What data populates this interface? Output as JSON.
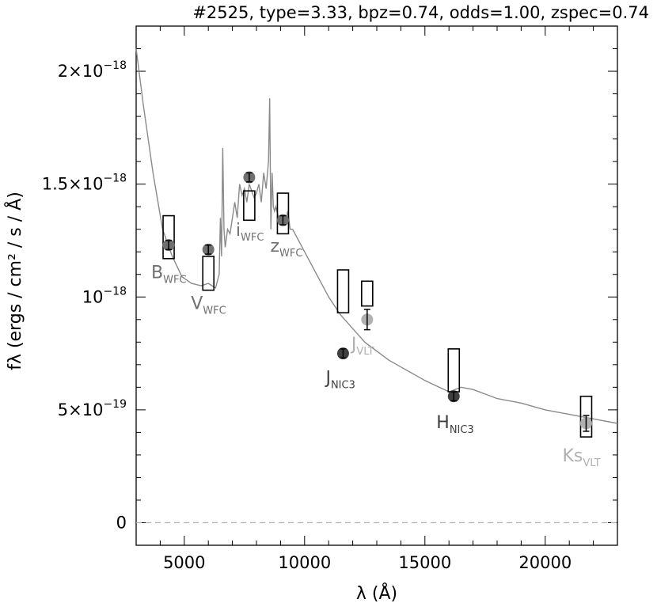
{
  "chart_data": {
    "type": "scatter",
    "title": "#2525, type=3.33, bpz=0.74, odds=1.00, zspec=0.74",
    "xlabel": "λ (Å)",
    "ylabel": "fλ (ergs / cm² / s / Å)",
    "xlim": [
      3000,
      23000
    ],
    "ylim": [
      -1e-19,
      2.2e-18
    ],
    "x_ticks": [
      5000,
      10000,
      15000,
      20000
    ],
    "x_tick_labels": [
      "5000",
      "10000",
      "15000",
      "20000"
    ],
    "y_ticks": [
      0,
      5e-19,
      1e-18,
      1.5e-18,
      2e-18
    ],
    "y_tick_labels": [
      {
        "base": "0",
        "exp": ""
      },
      {
        "base": "5×10",
        "exp": "−19"
      },
      {
        "base": "10",
        "exp": "−18"
      },
      {
        "base": "1.5×10",
        "exp": "−18"
      },
      {
        "base": "2×10",
        "exp": "−18"
      }
    ],
    "zero_line": {
      "y": 0,
      "style": "dashed"
    },
    "template_sed": {
      "x": [
        3000,
        3300,
        3700,
        4100,
        4500,
        4900,
        5300,
        5700,
        6000,
        6300,
        6450,
        6500,
        6550,
        6600,
        6650,
        6700,
        6800,
        6900,
        7000,
        7100,
        7200,
        7300,
        7400,
        7500,
        7600,
        7700,
        7800,
        7900,
        8000,
        8100,
        8200,
        8300,
        8400,
        8500,
        8550,
        8600,
        8650,
        8700,
        8750,
        8800,
        8900,
        9000,
        9100,
        9200,
        9300,
        9400,
        9500,
        9700,
        10000,
        10500,
        11000,
        11500,
        12000,
        12500,
        13000,
        13500,
        14000,
        15000,
        16000,
        16500,
        17000,
        17500,
        18000,
        19000,
        20000,
        21000,
        22000,
        23000
      ],
      "y": [
        2.1e-18,
        1.85e-18,
        1.55e-18,
        1.3e-18,
        1.18e-18,
        1.09e-18,
        1.06e-18,
        1.05e-18,
        1.06e-18,
        1.04e-18,
        1.1e-18,
        1.35e-18,
        1.18e-18,
        1.66e-18,
        1.3e-18,
        1.22e-18,
        1.3e-18,
        1.28e-18,
        1.35e-18,
        1.42e-18,
        1.35e-18,
        1.5e-18,
        1.45e-18,
        1.48e-18,
        1.42e-18,
        1.5e-18,
        1.47e-18,
        1.44e-18,
        1.46e-18,
        1.5e-18,
        1.42e-18,
        1.55e-18,
        1.48e-18,
        1.6e-18,
        1.88e-18,
        1.3e-18,
        1.55e-18,
        1.4e-18,
        1.38e-18,
        1.4e-18,
        1.36e-18,
        1.34e-18,
        1.36e-18,
        1.32e-18,
        1.38e-18,
        1.3e-18,
        1.3e-18,
        1.26e-18,
        1.2e-18,
        1.1e-18,
        1e-18,
        9.2e-19,
        8.6e-19,
        8e-19,
        7.6e-19,
        7.2e-19,
        6.9e-19,
        6.3e-19,
        5.8e-19,
        6e-19,
        5.9e-19,
        5.7e-19,
        5.5e-19,
        5.3e-19,
        5e-19,
        4.8e-19,
        4.6e-19,
        4.4e-19
      ]
    },
    "model_boxes": [
      {
        "x": 4350,
        "y_low": 1.17e-18,
        "y_high": 1.36e-18
      },
      {
        "x": 6000,
        "y_low": 1.03e-18,
        "y_high": 1.18e-18
      },
      {
        "x": 7700,
        "y_low": 1.34e-18,
        "y_high": 1.47e-18
      },
      {
        "x": 9100,
        "y_low": 1.28e-18,
        "y_high": 1.46e-18
      },
      {
        "x": 11600,
        "y_low": 9.3e-19,
        "y_high": 1.12e-18
      },
      {
        "x": 12600,
        "y_low": 9.6e-19,
        "y_high": 1.07e-18
      },
      {
        "x": 16200,
        "y_low": 5.8e-19,
        "y_high": 7.7e-19
      },
      {
        "x": 21700,
        "y_low": 3.8e-19,
        "y_high": 5.6e-19
      }
    ],
    "observations": [
      {
        "band": "B",
        "sub": "WFC",
        "x": 4350,
        "y": 1.23e-18,
        "err": 2e-20,
        "color": "#707070"
      },
      {
        "band": "V",
        "sub": "WFC",
        "x": 6000,
        "y": 1.21e-18,
        "err": 2e-20,
        "color": "#707070"
      },
      {
        "band": "i",
        "sub": "WFC",
        "x": 7700,
        "y": 1.53e-18,
        "err": 2e-20,
        "color": "#707070"
      },
      {
        "band": "z",
        "sub": "WFC",
        "x": 9100,
        "y": 1.34e-18,
        "err": 2e-20,
        "color": "#707070"
      },
      {
        "band": "J",
        "sub": "NIC3",
        "x": 11600,
        "y": 7.5e-19,
        "err": 2e-20,
        "color": "#404040"
      },
      {
        "band": "J",
        "sub": "VLT",
        "x": 12600,
        "y": 9e-19,
        "err": 4.5e-20,
        "color": "#b0b0b0"
      },
      {
        "band": "H",
        "sub": "NIC3",
        "x": 16200,
        "y": 5.6e-19,
        "err": 2e-20,
        "color": "#404040"
      },
      {
        "band": "Ks",
        "sub": "VLT",
        "x": 21700,
        "y": 4.4e-19,
        "err": 3.5e-20,
        "color": "#b0b0b0"
      }
    ]
  }
}
